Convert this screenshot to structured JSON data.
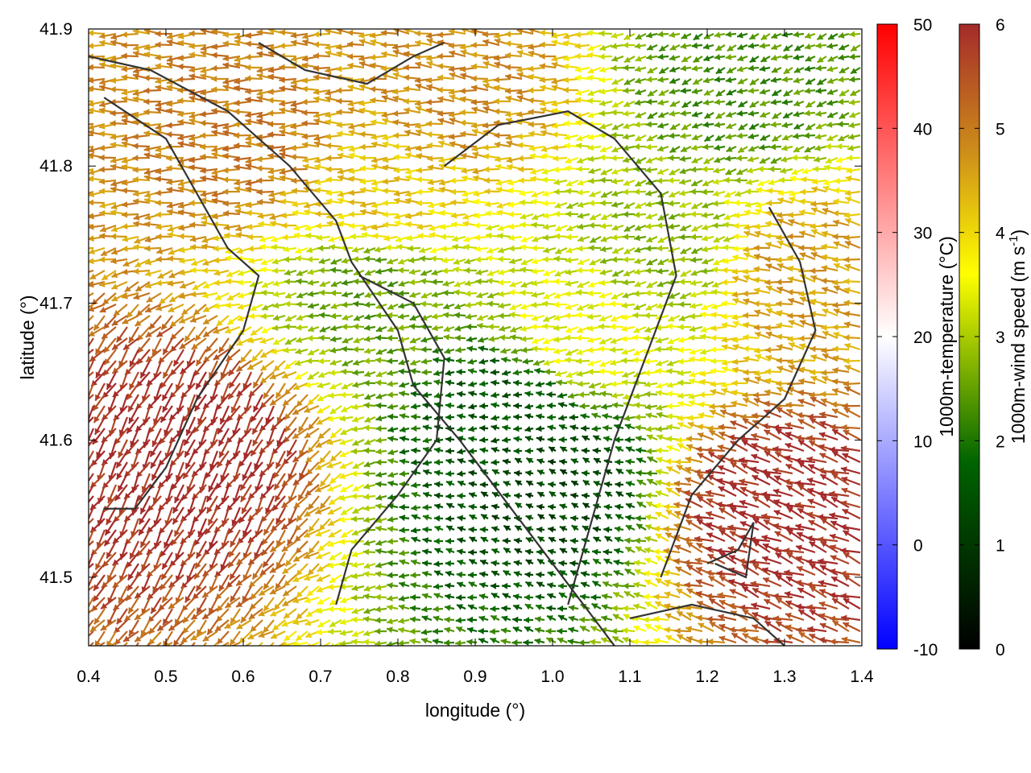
{
  "chart_data": {
    "type": "vector-field",
    "xlabel": "longitude (°)",
    "ylabel": "latitude (°)",
    "xlim": [
      0.4,
      1.4
    ],
    "ylim": [
      41.45,
      41.9
    ],
    "xticks": [
      "0.4",
      "0.5",
      "0.6",
      "0.7",
      "0.8",
      "0.9",
      "1.0",
      "1.1",
      "1.2",
      "1.3",
      "1.4"
    ],
    "yticks": [
      "41.5",
      "41.6",
      "41.7",
      "41.8",
      "41.9"
    ],
    "grid": false,
    "colorbars": [
      {
        "label": "1000m-temperature (°C)",
        "range": [
          -10,
          50
        ],
        "ticks": [
          "-10",
          "0",
          "10",
          "20",
          "30",
          "40",
          "50"
        ],
        "colors": [
          "#0000ff",
          "#ffffff",
          "#ff0000"
        ]
      },
      {
        "label_main": "1000m-wind speed (m s",
        "label_sup": "-1",
        "label_end": ")",
        "range": [
          0,
          6
        ],
        "ticks": [
          "0",
          "1",
          "2",
          "3",
          "4",
          "5",
          "6"
        ],
        "colors": [
          "#000000",
          "#006400",
          "#ffff00",
          "#cd8b1a",
          "#a52a2a"
        ]
      }
    ],
    "series": [
      {
        "kind": "wind-arrows",
        "regions": [
          {
            "lon": 0.55,
            "lat": 41.6,
            "speed": 6.0,
            "dir_deg": 120
          },
          {
            "lon": 0.62,
            "lat": 41.82,
            "speed": 5.0,
            "dir_deg": 180
          },
          {
            "lon": 0.78,
            "lat": 41.78,
            "speed": 4.2,
            "dir_deg": 180
          },
          {
            "lon": 0.77,
            "lat": 41.71,
            "speed": 2.5,
            "dir_deg": 170
          },
          {
            "lon": 0.95,
            "lat": 41.62,
            "speed": 1.5,
            "dir_deg": 180
          },
          {
            "lon": 1.0,
            "lat": 41.57,
            "speed": 1.2,
            "dir_deg": 200
          },
          {
            "lon": 1.05,
            "lat": 41.68,
            "speed": 3.5,
            "dir_deg": 170
          },
          {
            "lon": 1.25,
            "lat": 41.86,
            "speed": 2.3,
            "dir_deg": 160
          },
          {
            "lon": 1.15,
            "lat": 41.74,
            "speed": 2.8,
            "dir_deg": 165
          },
          {
            "lon": 1.3,
            "lat": 41.55,
            "speed": 6.0,
            "dir_deg": 200
          },
          {
            "lon": 1.33,
            "lat": 41.72,
            "speed": 4.6,
            "dir_deg": 190
          },
          {
            "lon": 0.88,
            "lat": 41.86,
            "speed": 4.8,
            "dir_deg": 185
          }
        ]
      },
      {
        "kind": "coastline-contours",
        "color": "#333333",
        "lines": [
          [
            [
              0.4,
              41.88
            ],
            [
              0.48,
              41.87
            ],
            [
              0.58,
              41.84
            ],
            [
              0.66,
              41.8
            ],
            [
              0.72,
              41.76
            ],
            [
              0.74,
              41.73
            ],
            [
              0.8,
              41.68
            ],
            [
              0.82,
              41.64
            ],
            [
              0.88,
              41.6
            ],
            [
              0.96,
              41.54
            ],
            [
              1.04,
              41.48
            ],
            [
              1.08,
              41.45
            ]
          ],
          [
            [
              0.42,
              41.85
            ],
            [
              0.5,
              41.82
            ],
            [
              0.54,
              41.78
            ],
            [
              0.58,
              41.74
            ],
            [
              0.62,
              41.72
            ],
            [
              0.6,
              41.68
            ],
            [
              0.54,
              41.63
            ],
            [
              0.5,
              41.58
            ],
            [
              0.46,
              41.55
            ],
            [
              0.42,
              41.55
            ]
          ],
          [
            [
              0.62,
              41.89
            ],
            [
              0.68,
              41.87
            ],
            [
              0.76,
              41.86
            ],
            [
              0.82,
              41.88
            ],
            [
              0.86,
              41.89
            ]
          ],
          [
            [
              0.75,
              41.72
            ],
            [
              0.82,
              41.7
            ],
            [
              0.86,
              41.66
            ],
            [
              0.85,
              41.6
            ],
            [
              0.8,
              41.56
            ],
            [
              0.74,
              41.52
            ],
            [
              0.72,
              41.48
            ]
          ],
          [
            [
              0.86,
              41.8
            ],
            [
              0.93,
              41.83
            ],
            [
              1.02,
              41.84
            ],
            [
              1.08,
              41.82
            ],
            [
              1.14,
              41.78
            ],
            [
              1.16,
              41.72
            ],
            [
              1.12,
              41.66
            ],
            [
              1.08,
              41.6
            ],
            [
              1.05,
              41.54
            ],
            [
              1.02,
              41.48
            ]
          ],
          [
            [
              1.28,
              41.77
            ],
            [
              1.32,
              41.73
            ],
            [
              1.34,
              41.68
            ],
            [
              1.3,
              41.63
            ],
            [
              1.24,
              41.6
            ],
            [
              1.18,
              41.56
            ],
            [
              1.14,
              41.5
            ]
          ],
          [
            [
              1.1,
              41.47
            ],
            [
              1.18,
              41.48
            ],
            [
              1.26,
              41.47
            ],
            [
              1.3,
              41.45
            ]
          ],
          [
            [
              1.2,
              41.51
            ],
            [
              1.24,
              41.52
            ],
            [
              1.26,
              41.54
            ],
            [
              1.25,
              41.5
            ],
            [
              1.21,
              41.51
            ]
          ]
        ]
      }
    ]
  }
}
